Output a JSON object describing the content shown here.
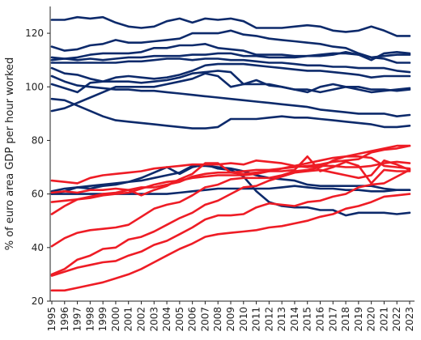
{
  "chart_data": {
    "type": "line",
    "title": "",
    "xlabel": "",
    "ylabel": "% of euro area GDP per hour worked",
    "ylim": [
      20,
      130
    ],
    "yticks": [
      20,
      40,
      60,
      80,
      100,
      120
    ],
    "grid": false,
    "legend": "none",
    "x": [
      1995,
      1996,
      1997,
      1998,
      1999,
      2000,
      2001,
      2002,
      2003,
      2004,
      2005,
      2006,
      2007,
      2008,
      2009,
      2010,
      2011,
      2012,
      2013,
      2014,
      2015,
      2016,
      2017,
      2018,
      2019,
      2020,
      2021,
      2022,
      2023
    ],
    "series": [
      {
        "color": "#0d2a6b",
        "values": [
          125,
          125,
          126,
          125.5,
          126,
          124,
          122.5,
          122,
          122.5,
          124.5,
          125.5,
          124,
          125.5,
          125,
          125.5,
          124.5,
          122,
          122,
          122,
          122.5,
          123,
          122.5,
          121,
          120.5,
          121,
          122.5,
          121,
          119,
          119
        ]
      },
      {
        "color": "#0d2a6b",
        "values": [
          115,
          113.5,
          114,
          115.5,
          116,
          117.5,
          116.5,
          116.5,
          117,
          117.5,
          118,
          120,
          120,
          120,
          121,
          119.5,
          119,
          118,
          117.5,
          117,
          116.5,
          116,
          115,
          114.5,
          112.5,
          111,
          110.5,
          109,
          109
        ]
      },
      {
        "color": "#0d2a6b",
        "values": [
          111,
          110.5,
          111,
          112,
          112.5,
          112.5,
          112.5,
          113,
          114.5,
          114.5,
          115.5,
          115.5,
          116,
          114.5,
          114,
          113.5,
          112,
          112,
          112,
          111.5,
          111.5,
          112,
          112.5,
          112.5,
          112,
          110,
          112.5,
          113,
          112.5
        ]
      },
      {
        "color": "#0d2a6b",
        "values": [
          110,
          110.5,
          110,
          110.5,
          110,
          110.5,
          111,
          111,
          111.5,
          111.5,
          111.5,
          112,
          112,
          112.5,
          112.5,
          111.5,
          111.5,
          111,
          111,
          111,
          111.5,
          111.5,
          112,
          113,
          112,
          111,
          111.5,
          112,
          112
        ]
      },
      {
        "color": "#0d2a6b",
        "values": [
          109,
          109,
          109,
          109,
          109,
          109,
          109.5,
          109.5,
          110,
          110.5,
          110.5,
          110,
          110.5,
          110.5,
          110,
          110,
          109.5,
          109,
          109,
          108.5,
          108,
          108,
          107.5,
          107.5,
          107,
          107,
          107,
          106,
          105.5
        ]
      },
      {
        "color": "#0d2a6b",
        "values": [
          107,
          105,
          104.5,
          103,
          102,
          103.5,
          104,
          103.5,
          103,
          103.5,
          104.5,
          106,
          108,
          108.5,
          108.5,
          108.5,
          108,
          107.5,
          107,
          106.5,
          106,
          106,
          105.5,
          105,
          104.5,
          103.5,
          104,
          104,
          104
        ]
      },
      {
        "color": "#0d2a6b",
        "values": [
          101,
          99.5,
          98,
          101.5,
          102,
          102,
          102,
          101.5,
          102,
          102.5,
          103.5,
          105,
          105.5,
          106,
          105.5,
          101,
          102.5,
          100.5,
          100,
          99,
          99,
          98,
          99,
          100,
          99,
          98,
          98.5,
          99,
          99.5
        ]
      },
      {
        "color": "#0d2a6b",
        "values": [
          91,
          92,
          94,
          96,
          98,
          100,
          100,
          100,
          100,
          101,
          102,
          103,
          105,
          104,
          100,
          101,
          101,
          101,
          100,
          99,
          98,
          100,
          101,
          100,
          100,
          99,
          99,
          98.5,
          99
        ]
      },
      {
        "color": "#0d2a6b",
        "values": [
          95.5,
          95,
          93,
          91,
          89,
          87.5,
          87,
          86.5,
          86,
          85.5,
          85,
          84.5,
          84.5,
          85,
          88,
          88,
          88,
          88.5,
          89,
          88.5,
          88.5,
          88,
          87.5,
          87,
          86.5,
          86,
          85,
          85,
          85.5
        ]
      },
      {
        "color": "#0d2a6b",
        "values": [
          104,
          102,
          100.5,
          100,
          99.5,
          99,
          99,
          98.5,
          98.5,
          98,
          97.5,
          97,
          96.5,
          96,
          95.5,
          95,
          94.5,
          94,
          93.5,
          93,
          92.5,
          91.5,
          91,
          90.5,
          90,
          90,
          90,
          89,
          89.5
        ]
      },
      {
        "color": "#0d2a6b",
        "values": [
          60,
          61,
          62.5,
          62,
          63,
          63.5,
          64.5,
          66,
          68,
          70,
          67.5,
          70,
          71,
          69.5,
          69,
          66.5,
          61,
          57,
          55.5,
          55,
          55,
          54,
          54,
          52,
          53,
          53,
          53,
          52.5,
          53
        ]
      },
      {
        "color": "#0d2a6b",
        "values": [
          61,
          62,
          62.5,
          63,
          63.5,
          64,
          64.5,
          65,
          66,
          67,
          68,
          70.5,
          70.5,
          70,
          69.5,
          68.5,
          67,
          66,
          65.5,
          65,
          63.5,
          63,
          63,
          63,
          63,
          63,
          62,
          61.5,
          61.5
        ]
      },
      {
        "color": "#0d2a6b",
        "values": [
          60,
          60,
          60,
          60,
          60,
          60,
          60,
          60,
          60,
          60,
          60.5,
          61,
          61.5,
          62,
          62,
          62,
          62,
          62,
          62.5,
          63,
          62.5,
          62,
          62,
          61.5,
          61.5,
          61,
          61,
          61.5,
          61.5
        ]
      },
      {
        "color": "#ee1c25",
        "values": [
          65,
          64.5,
          64,
          66,
          67,
          67.5,
          68,
          68.5,
          69.5,
          70,
          70.5,
          71,
          71,
          71,
          71.5,
          71,
          72.5,
          72,
          71.5,
          70.5,
          70,
          70.5,
          70.5,
          70,
          70,
          70.5,
          71.5,
          72,
          71.5
        ]
      },
      {
        "color": "#ee1c25",
        "values": [
          57,
          57.5,
          58,
          58.5,
          59.5,
          60,
          60.5,
          62,
          63.5,
          64.5,
          65,
          66,
          66.5,
          67,
          67,
          67,
          67.5,
          68.5,
          69.5,
          70.5,
          71.5,
          72.5,
          73.5,
          74,
          75,
          76,
          77,
          78,
          78
        ]
      },
      {
        "color": "#ee1c25",
        "values": [
          52.5,
          55.5,
          58,
          59,
          60,
          60.5,
          61.5,
          59.5,
          61.5,
          63,
          65.5,
          67.5,
          71.5,
          71.5,
          68,
          67.5,
          68,
          68.5,
          68.5,
          69,
          74,
          68.5,
          70,
          72,
          70.5,
          64,
          69,
          68.5,
          68.5
        ]
      },
      {
        "color": "#ee1c25",
        "values": [
          60.5,
          61,
          60.5,
          61.5,
          61.5,
          62,
          61.5,
          62.5,
          62.5,
          63.5,
          64.5,
          66.5,
          67.5,
          68,
          68,
          68.5,
          69,
          69,
          69.5,
          70,
          70.5,
          71,
          72,
          72.5,
          73,
          75.5,
          76.5,
          77,
          78
        ]
      },
      {
        "color": "#ee1c25",
        "values": [
          40.5,
          43.5,
          45.5,
          46.5,
          47,
          47.5,
          48.5,
          51.5,
          54.5,
          56,
          57,
          59.5,
          62.5,
          63.5,
          65.5,
          66,
          66,
          66,
          67,
          68.5,
          69,
          70,
          72.5,
          74,
          74,
          73.5,
          70.5,
          70,
          69.5
        ]
      },
      {
        "color": "#ee1c25",
        "values": [
          30,
          32,
          35.5,
          37,
          39.5,
          40,
          43,
          44,
          46,
          48.5,
          51,
          53,
          56,
          57.5,
          60,
          62.5,
          63,
          65,
          66.5,
          68,
          68.5,
          69,
          68,
          67,
          66,
          67,
          72.5,
          71,
          69
        ]
      },
      {
        "color": "#ee1c25",
        "values": [
          29.5,
          31,
          32.5,
          33.5,
          34.5,
          35,
          37,
          38.5,
          41,
          42.5,
          45,
          47.5,
          50.5,
          52,
          52,
          52.5,
          55,
          56.5,
          56,
          55.5,
          57,
          57.5,
          59,
          60,
          62.5,
          63.5,
          64,
          66.5,
          69
        ]
      },
      {
        "color": "#ee1c25",
        "values": [
          24,
          24,
          25,
          26,
          27,
          28.5,
          30,
          32,
          34.5,
          37,
          39.5,
          41.5,
          44,
          45,
          45.5,
          46,
          46.5,
          47.5,
          48,
          49,
          50,
          51.5,
          52.5,
          54.5,
          55.5,
          57,
          59,
          59.5,
          60
        ]
      }
    ]
  }
}
